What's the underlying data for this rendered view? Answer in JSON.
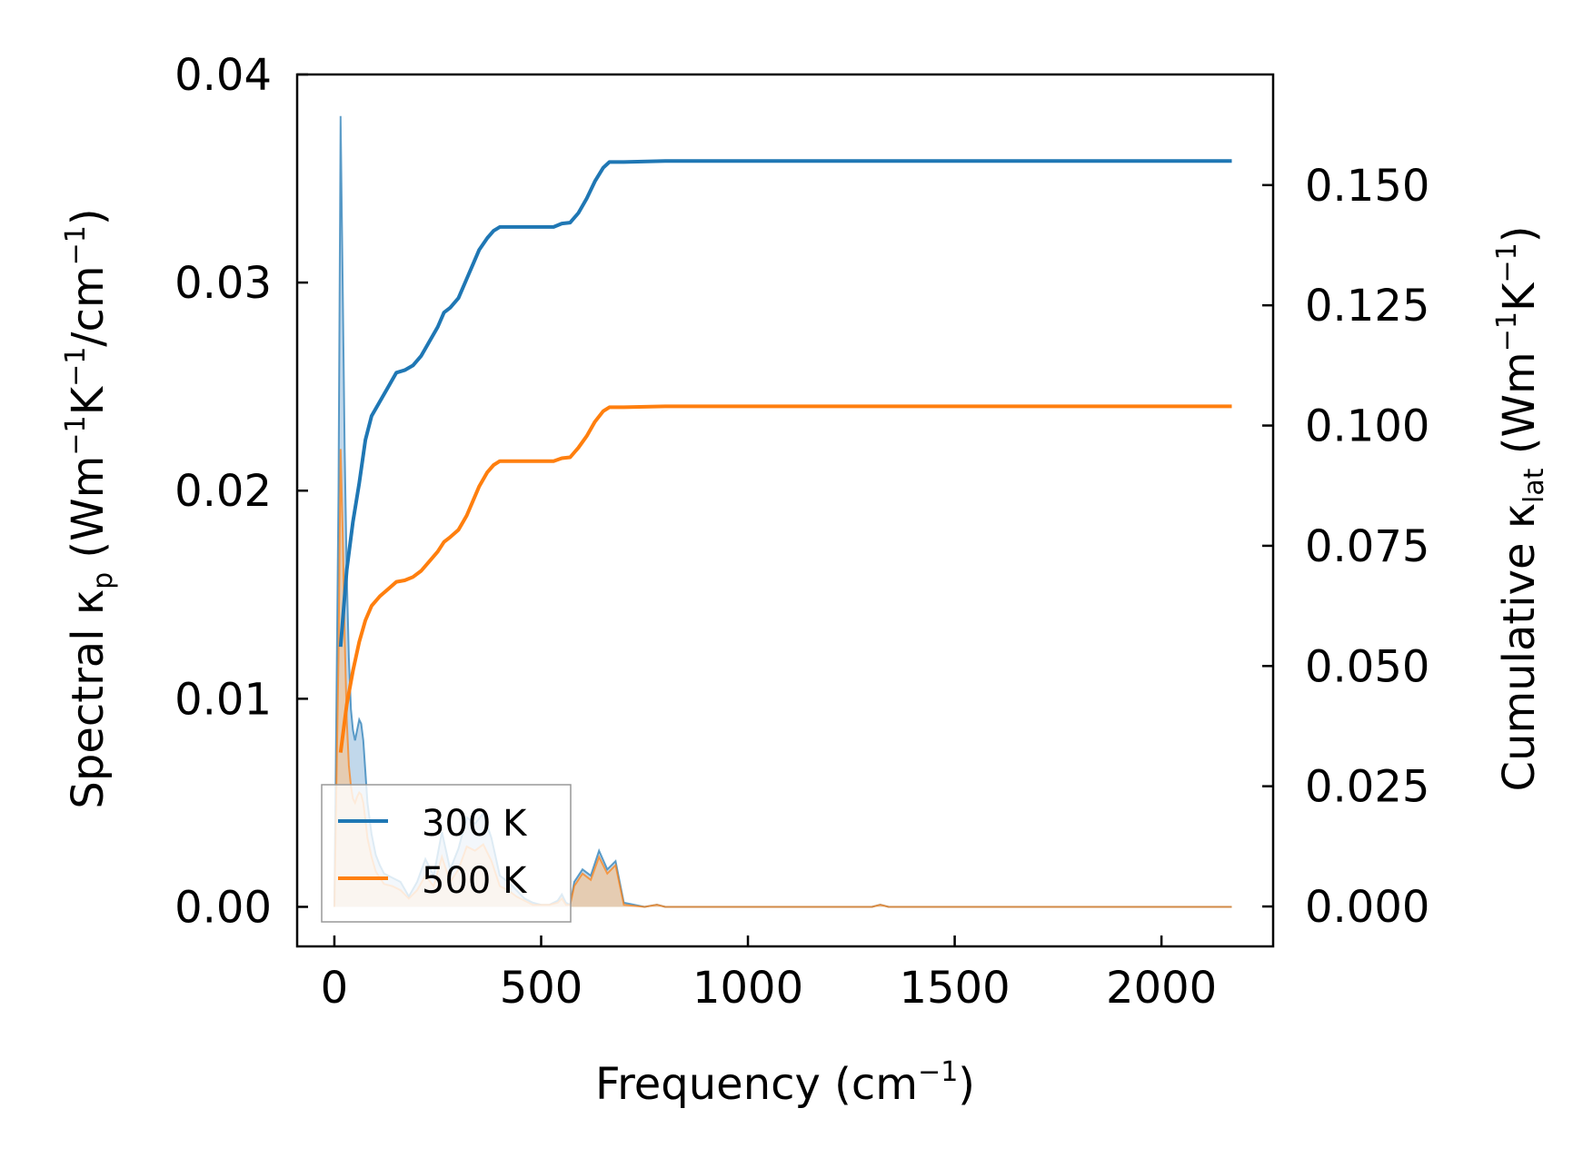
{
  "chart_data": {
    "type": "line",
    "title": "",
    "xlabel": {
      "text": "Frequency (cm",
      "sup": "−1",
      "tail": ")"
    },
    "ylabel_left": {
      "pre": "Spectral κ",
      "sub": "p",
      "mid": " (Wm",
      "sup1": "−1",
      "k": "K",
      "sup2": "−1",
      "mid2": "/cm",
      "sup3": "−1",
      "tail": ")"
    },
    "ylabel_right": {
      "pre": "Cumulative κ",
      "sub": "lat",
      "mid": " (Wm",
      "sup1": "−1",
      "k": "K",
      "sup2": "−1",
      "tail": ")"
    },
    "xlim": [
      -90,
      2270
    ],
    "ylim_left": [
      -0.0019,
      0.04
    ],
    "ylim_right": [
      -0.0083,
      0.173
    ],
    "x_ticks": [
      0,
      500,
      1000,
      1500,
      2000
    ],
    "x_tick_labels": [
      "0",
      "500",
      "1000",
      "1500",
      "2000"
    ],
    "y_left_ticks": [
      0,
      0.01,
      0.02,
      0.03,
      0.04
    ],
    "y_left_tick_labels": [
      "0.00",
      "0.01",
      "0.02",
      "0.03",
      "0.04"
    ],
    "y_right_ticks": [
      0,
      0.025,
      0.05,
      0.075,
      0.1,
      0.125,
      0.15
    ],
    "y_right_tick_labels": [
      "0.000",
      "0.025",
      "0.050",
      "0.075",
      "0.100",
      "0.125",
      "0.150"
    ],
    "legend": {
      "position": "lower-left",
      "entries": [
        "300 K",
        "500 K"
      ]
    },
    "colors": {
      "300K": "#1f77b4",
      "500K": "#ff7f0e",
      "300K_fill": "#a6c8e3",
      "500K_fill": "#f4c89a"
    },
    "cumulative": [
      {
        "name": "300 K",
        "x": [
          15,
          30,
          45,
          60,
          75,
          90,
          110,
          130,
          150,
          170,
          190,
          210,
          230,
          250,
          265,
          280,
          300,
          320,
          335,
          350,
          370,
          385,
          400,
          420,
          450,
          500,
          530,
          550,
          570,
          590,
          610,
          630,
          650,
          665,
          700,
          800,
          1000,
          1300,
          1500,
          2000,
          2170
        ],
        "y": [
          0.054,
          0.07,
          0.08,
          0.088,
          0.097,
          0.102,
          0.105,
          0.108,
          0.111,
          0.1115,
          0.1125,
          0.1145,
          0.1175,
          0.1205,
          0.1235,
          0.1245,
          0.1265,
          0.1305,
          0.1335,
          0.1365,
          0.139,
          0.1405,
          0.1413,
          0.1413,
          0.1413,
          0.1413,
          0.1413,
          0.142,
          0.1422,
          0.1442,
          0.1472,
          0.1508,
          0.1536,
          0.1548,
          0.1548,
          0.155,
          0.155,
          0.155,
          0.155,
          0.155,
          0.155
        ]
      },
      {
        "name": "500 K",
        "x": [
          15,
          30,
          45,
          60,
          75,
          90,
          110,
          130,
          150,
          170,
          190,
          210,
          230,
          250,
          265,
          280,
          300,
          320,
          335,
          350,
          370,
          385,
          400,
          420,
          450,
          500,
          530,
          550,
          570,
          590,
          610,
          630,
          650,
          665,
          700,
          800,
          1000,
          1300,
          1500,
          2000,
          2170
        ],
        "y": [
          0.032,
          0.042,
          0.049,
          0.055,
          0.0595,
          0.0625,
          0.0645,
          0.066,
          0.0675,
          0.0678,
          0.0685,
          0.0698,
          0.0718,
          0.0738,
          0.0758,
          0.0768,
          0.0783,
          0.0813,
          0.0843,
          0.0873,
          0.0903,
          0.0918,
          0.0926,
          0.0926,
          0.0926,
          0.0926,
          0.0926,
          0.0932,
          0.0934,
          0.0954,
          0.0978,
          0.1008,
          0.103,
          0.1038,
          0.1038,
          0.104,
          0.104,
          0.104,
          0.104,
          0.104,
          0.104
        ]
      }
    ],
    "spectral": [
      {
        "name": "300 K",
        "x": [
          0,
          10,
          15,
          20,
          25,
          30,
          35,
          40,
          45,
          50,
          55,
          60,
          65,
          70,
          75,
          80,
          90,
          100,
          110,
          120,
          140,
          160,
          180,
          200,
          220,
          240,
          260,
          280,
          300,
          320,
          340,
          360,
          380,
          400,
          420,
          440,
          460,
          480,
          500,
          520,
          540,
          550,
          560,
          570,
          580,
          600,
          620,
          640,
          660,
          680,
          700,
          750,
          780,
          800,
          1300,
          1320,
          1340,
          2170
        ],
        "y": [
          0,
          0.02,
          0.038,
          0.03,
          0.022,
          0.016,
          0.012,
          0.0095,
          0.0085,
          0.008,
          0.0085,
          0.009,
          0.0088,
          0.008,
          0.0065,
          0.005,
          0.0035,
          0.0025,
          0.002,
          0.0016,
          0.0014,
          0.0012,
          0.0005,
          0.0012,
          0.0023,
          0.0015,
          0.0036,
          0.0018,
          0.0028,
          0.0043,
          0.004,
          0.0045,
          0.0033,
          0.0015,
          0.0012,
          0.0008,
          0.0004,
          0.0002,
          0.0001,
          0.0001,
          0.0003,
          0.0006,
          0.0002,
          0.0001,
          0.0012,
          0.0018,
          0.0015,
          0.0027,
          0.0018,
          0.0022,
          0.0002,
          0,
          0.0001,
          0,
          0,
          0.0001,
          0,
          0
        ]
      },
      {
        "name": "500 K",
        "x": [
          0,
          10,
          15,
          20,
          25,
          30,
          35,
          40,
          45,
          50,
          55,
          60,
          65,
          70,
          75,
          80,
          90,
          100,
          110,
          120,
          140,
          160,
          180,
          200,
          220,
          240,
          260,
          280,
          300,
          320,
          340,
          360,
          380,
          400,
          420,
          440,
          460,
          480,
          500,
          520,
          540,
          550,
          560,
          570,
          580,
          600,
          620,
          640,
          660,
          680,
          700,
          750,
          780,
          800,
          1300,
          1320,
          1340,
          2170
        ],
        "y": [
          0,
          0.012,
          0.022,
          0.018,
          0.013,
          0.009,
          0.0068,
          0.0058,
          0.0052,
          0.005,
          0.0053,
          0.0055,
          0.0054,
          0.005,
          0.0042,
          0.0033,
          0.0024,
          0.0017,
          0.0014,
          0.0011,
          0.001,
          0.0008,
          0.0004,
          0.0008,
          0.0015,
          0.001,
          0.0024,
          0.0012,
          0.0018,
          0.0029,
          0.0027,
          0.003,
          0.0022,
          0.001,
          0.0008,
          0.0005,
          0.0003,
          0.0001,
          0.0001,
          0.0001,
          0.0002,
          0.0004,
          0.0001,
          0.0001,
          0.001,
          0.0016,
          0.0013,
          0.0024,
          0.0016,
          0.002,
          0.0001,
          0,
          0.0001,
          0,
          0,
          0.0001,
          0,
          0
        ]
      }
    ]
  }
}
